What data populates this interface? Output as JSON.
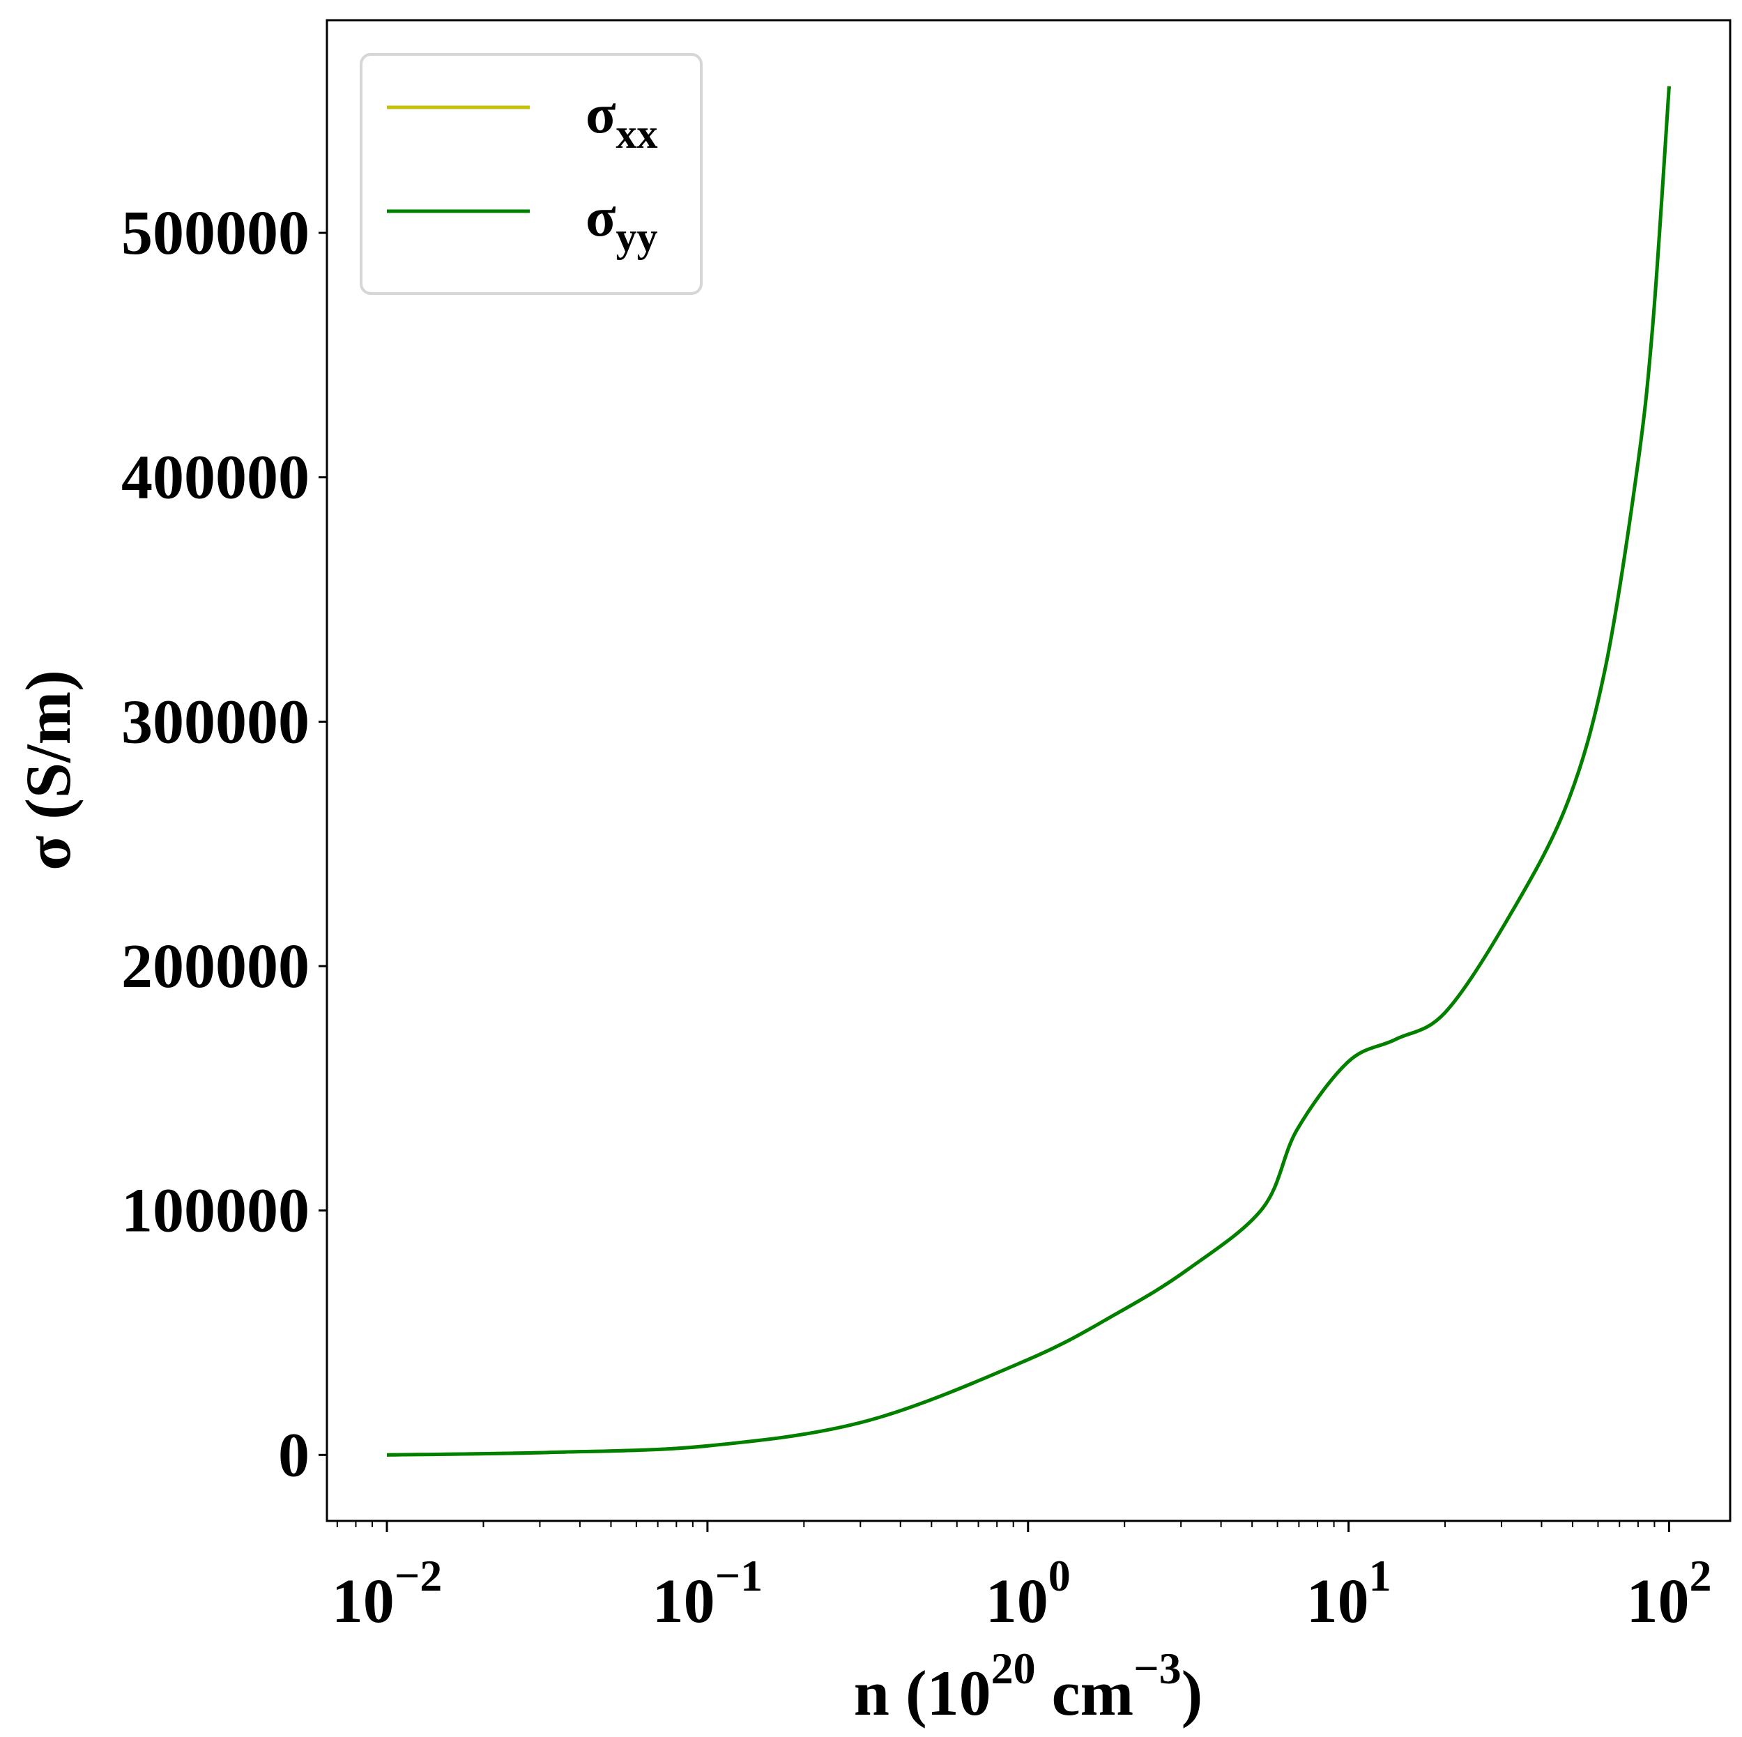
{
  "chart_data": {
    "type": "line",
    "xlabel": "n (10",
    "xlabel_sup1": "20",
    "xlabel_mid": " cm",
    "xlabel_sup2": "−3",
    "xlabel_end": ")",
    "ylabel": "σ (S/m)",
    "xscale": "log",
    "xlim": [
      0.0065,
      155
    ],
    "ylim": [
      -27000,
      587000
    ],
    "grid": false,
    "legend_placement": "top-left",
    "x_ticks": [
      {
        "base": "10",
        "exp": "−2"
      },
      {
        "base": "10",
        "exp": "−1"
      },
      {
        "base": "10",
        "exp": "0"
      },
      {
        "base": "10",
        "exp": "1"
      },
      {
        "base": "10",
        "exp": "2"
      }
    ],
    "y_ticks": [
      "0",
      "100000",
      "200000",
      "300000",
      "400000",
      "500000"
    ],
    "x": [
      0.01,
      0.0316,
      0.1,
      0.316,
      1,
      1.9,
      3.16,
      5.4,
      6.9,
      10,
      14,
      20,
      31.6,
      47.9,
      63,
      79.4,
      89,
      100
    ],
    "series": [
      {
        "name": "σ",
        "sub": "xx",
        "color": "#c5c00a",
        "values": [
          0,
          1000,
          3700,
          14000,
          39000,
          58000,
          76000,
          101000,
          133000,
          161000,
          170000,
          181000,
          220000,
          266000,
          321000,
          403000,
          463000,
          560000
        ]
      },
      {
        "name": "σ",
        "sub": "yy",
        "color": "#008000",
        "values": [
          0,
          1000,
          3700,
          14000,
          39000,
          58000,
          76000,
          101000,
          133000,
          161000,
          170000,
          181000,
          220000,
          266000,
          321000,
          403000,
          463000,
          560000
        ]
      }
    ]
  }
}
